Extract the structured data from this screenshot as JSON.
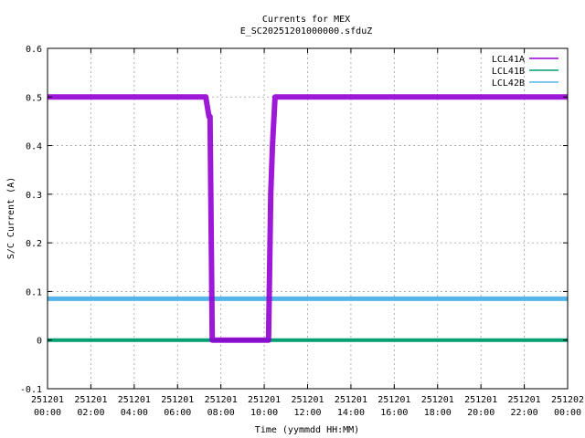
{
  "chart_data": {
    "type": "line",
    "title": "Currents for MEX",
    "subtitle": "E_SC20251201000000.sfduZ",
    "xlabel": "Time (yymmdd HH:MM)",
    "ylabel": "S/C Current (A)",
    "xlim_hours": [
      0,
      24
    ],
    "ylim": [
      -0.1,
      0.6
    ],
    "grid": true,
    "legend_position": "top-right",
    "yticks": [
      "-0.1",
      "0",
      "0.1",
      "0.2",
      "0.3",
      "0.4",
      "0.5",
      "0.6"
    ],
    "xticks": [
      {
        "date": "251201",
        "time": "00:00"
      },
      {
        "date": "251201",
        "time": "02:00"
      },
      {
        "date": "251201",
        "time": "04:00"
      },
      {
        "date": "251201",
        "time": "06:00"
      },
      {
        "date": "251201",
        "time": "08:00"
      },
      {
        "date": "251201",
        "time": "10:00"
      },
      {
        "date": "251201",
        "time": "12:00"
      },
      {
        "date": "251201",
        "time": "14:00"
      },
      {
        "date": "251201",
        "time": "16:00"
      },
      {
        "date": "251201",
        "time": "18:00"
      },
      {
        "date": "251201",
        "time": "20:00"
      },
      {
        "date": "251201",
        "time": "22:00"
      },
      {
        "date": "251202",
        "time": "00:00"
      }
    ],
    "series": [
      {
        "name": "LCL41A",
        "color": "#9400d3",
        "x_hours": [
          0,
          7.3,
          7.45,
          7.5,
          7.6,
          10.2,
          10.3,
          10.38,
          10.5,
          11.0,
          12.0,
          24
        ],
        "values": [
          0.5,
          0.5,
          0.46,
          0.46,
          0.0,
          0.0,
          0.3,
          0.4,
          0.5,
          0.5,
          0.5,
          0.5
        ]
      },
      {
        "name": "LCL41B",
        "color": "#009e73",
        "x_hours": [
          0,
          24
        ],
        "values": [
          0.0,
          0.0
        ]
      },
      {
        "name": "LCL42B",
        "color": "#56b4e9",
        "x_hours": [
          0,
          24
        ],
        "values": [
          0.085,
          0.085
        ]
      }
    ]
  }
}
